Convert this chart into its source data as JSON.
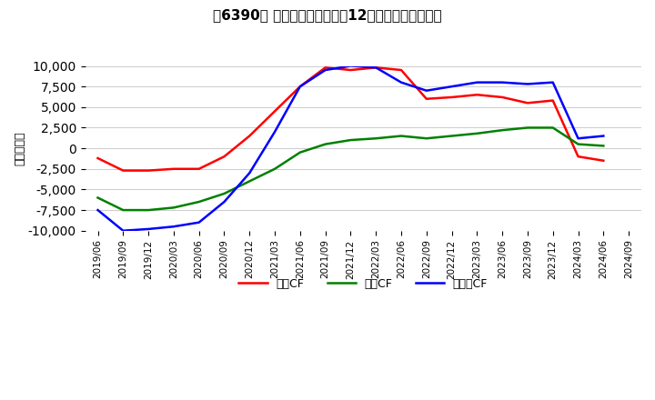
{
  "title": "［6390］ キャッシュフローの12か月移動合計の推移",
  "ylabel": "（百万円）",
  "ylim": [
    -10000,
    10000
  ],
  "yticks": [
    -10000,
    -7500,
    -5000,
    -2500,
    0,
    2500,
    5000,
    7500,
    10000
  ],
  "x_labels": [
    "2019/06",
    "2019/09",
    "2019/12",
    "2020/03",
    "2020/06",
    "2020/09",
    "2020/12",
    "2021/03",
    "2021/06",
    "2021/09",
    "2021/12",
    "2022/03",
    "2022/06",
    "2022/09",
    "2022/12",
    "2023/03",
    "2023/06",
    "2023/09",
    "2023/12",
    "2024/03",
    "2024/06",
    "2024/09"
  ],
  "operating_cf": [
    -1200,
    -2700,
    -2700,
    -2500,
    -2500,
    -1000,
    1500,
    4500,
    7500,
    9800,
    9500,
    9800,
    9500,
    6000,
    6200,
    6500,
    6200,
    5500,
    5800,
    -1000,
    -1500,
    null
  ],
  "investing_cf": [
    -6000,
    -7500,
    -7500,
    -7200,
    -6500,
    -5500,
    -4000,
    -2500,
    -500,
    500,
    1000,
    1200,
    1500,
    1200,
    1500,
    1800,
    2200,
    2500,
    2500,
    500,
    300,
    null
  ],
  "free_cf": [
    -7500,
    -10000,
    -9800,
    -9500,
    -9000,
    -6500,
    -3000,
    2000,
    7500,
    9500,
    10000,
    9800,
    8000,
    7000,
    7500,
    8000,
    8000,
    7800,
    8000,
    1200,
    1500,
    null
  ],
  "operating_color": "#ff0000",
  "investing_color": "#008000",
  "free_color": "#0000ff",
  "legend_labels": [
    "営業CF",
    "投資CF",
    "フリーCF"
  ],
  "background_color": "#ffffff",
  "grid_color": "#cccccc"
}
